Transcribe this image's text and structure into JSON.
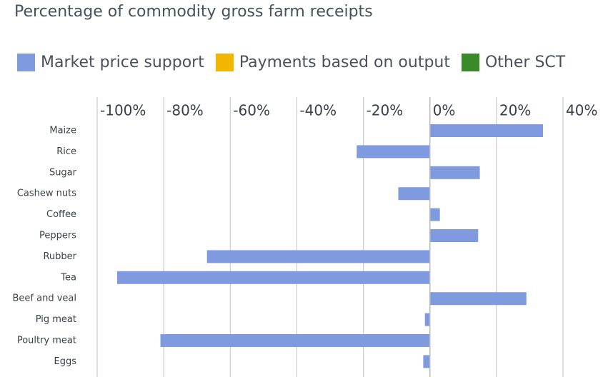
{
  "chart_data": {
    "type": "bar",
    "orientation": "horizontal",
    "title": "Percentage of commodity gross farm receipts",
    "categories": [
      "Maize",
      "Rice",
      "Sugar",
      "Cashew nuts",
      "Coffee",
      "Peppers",
      "Rubber",
      "Tea",
      "Beef and veal",
      "Pig meat",
      "Poultry meat",
      "Eggs"
    ],
    "series": [
      {
        "name": "Market price support",
        "color": "#7f9ade",
        "values": [
          34,
          -22,
          15,
          -9.5,
          3,
          14.5,
          -67,
          -94,
          29,
          -1.5,
          -81,
          -2
        ]
      },
      {
        "name": "Payments based on output",
        "color": "#f2b600",
        "values": [
          0,
          0,
          0,
          0,
          0,
          0,
          0,
          0,
          0,
          0,
          0,
          0
        ]
      },
      {
        "name": "Other SCT",
        "color": "#3a8a2a",
        "values": [
          0,
          0,
          0,
          0,
          0,
          0,
          0,
          0,
          0,
          0,
          0,
          0
        ]
      }
    ],
    "xlim": [
      -100,
      40
    ],
    "xticks": [
      -100,
      -80,
      -60,
      -40,
      -20,
      0,
      20,
      40
    ],
    "xtick_labels": [
      "-100%",
      "-80%",
      "-60%",
      "-40%",
      "-20%",
      "0%",
      "20%",
      "40%"
    ],
    "xaxis_position": "top",
    "grid": true,
    "legend_position": "top"
  }
}
